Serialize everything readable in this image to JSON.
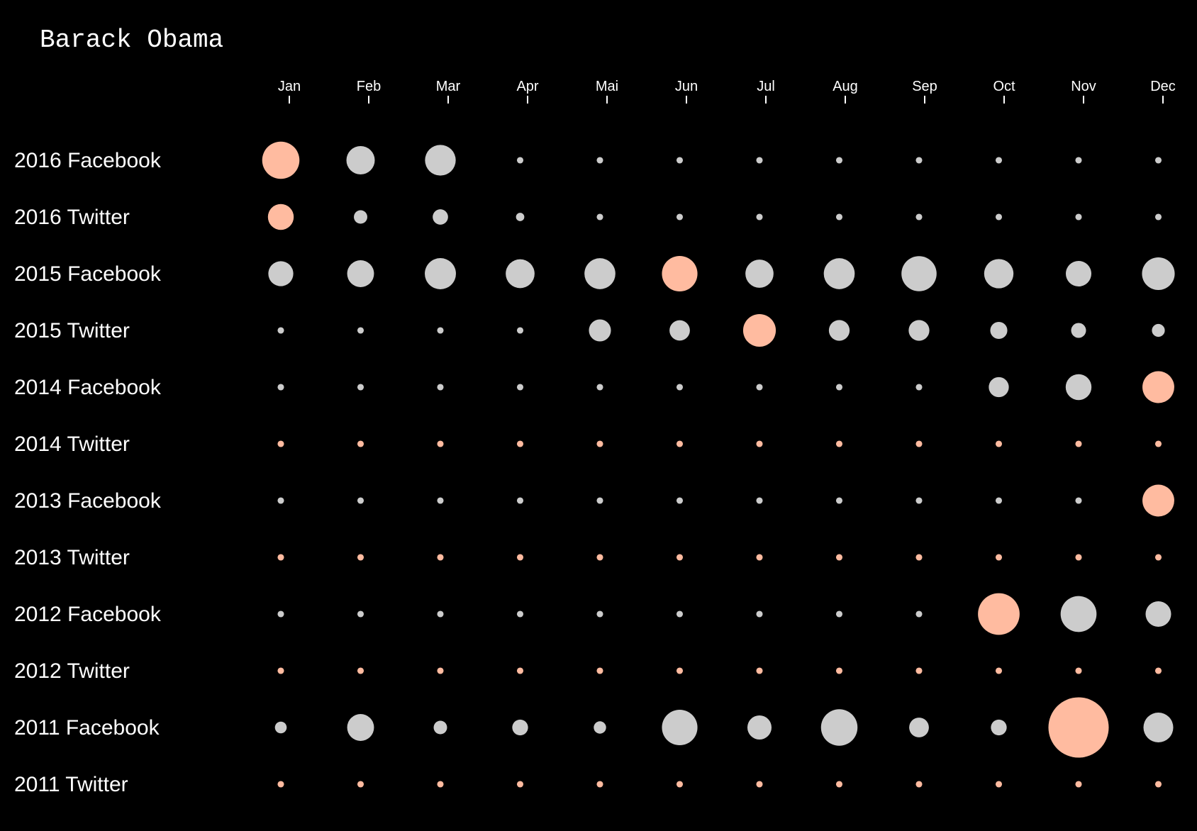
{
  "chart_data": {
    "type": "scatter",
    "title": "Barack Obama",
    "months": [
      "Jan",
      "Feb",
      "Mar",
      "Apr",
      "Mai",
      "Jun",
      "Jul",
      "Aug",
      "Sep",
      "Oct",
      "Nov",
      "Dec"
    ],
    "highlight_color": "#FFBBA0",
    "base_color": "#CCCCCC",
    "rows": [
      {
        "label": "2016 Facebook",
        "values": [
          100,
          58,
          68,
          3,
          3,
          3,
          3,
          3,
          3,
          3,
          3,
          3
        ],
        "highlight_index": 0
      },
      {
        "label": "2016 Twitter",
        "values": [
          48,
          13,
          17,
          5,
          3,
          3,
          3,
          3,
          3,
          3,
          3,
          3
        ],
        "highlight_index": 0
      },
      {
        "label": "2015 Facebook",
        "values": [
          45,
          52,
          70,
          60,
          69,
          91,
          57,
          69,
          89,
          62,
          47,
          77
        ],
        "highlight_index": 5
      },
      {
        "label": "2015 Twitter",
        "values": [
          3,
          3,
          3,
          3,
          35,
          30,
          77,
          31,
          31,
          21,
          16,
          12
        ],
        "highlight_index": 6
      },
      {
        "label": "2014 Facebook",
        "values": [
          3,
          3,
          3,
          3,
          3,
          3,
          3,
          3,
          3,
          29,
          48,
          73
        ],
        "highlight_index": 11
      },
      {
        "label": "2014 Twitter",
        "values": [
          3,
          3,
          3,
          3,
          3,
          3,
          3,
          3,
          3,
          3,
          3,
          3
        ],
        "highlight_index": -1
      },
      {
        "label": "2013 Facebook",
        "values": [
          3,
          3,
          3,
          3,
          3,
          3,
          3,
          3,
          3,
          3,
          3,
          73
        ],
        "highlight_index": 11
      },
      {
        "label": "2013 Twitter",
        "values": [
          3,
          3,
          3,
          3,
          3,
          3,
          3,
          3,
          3,
          3,
          3,
          3
        ],
        "highlight_index": -1
      },
      {
        "label": "2012 Facebook",
        "values": [
          3,
          3,
          3,
          3,
          3,
          3,
          3,
          3,
          3,
          125,
          93,
          47
        ],
        "highlight_index": 9
      },
      {
        "label": "2012 Twitter",
        "values": [
          3,
          3,
          3,
          3,
          3,
          3,
          3,
          3,
          3,
          3,
          3,
          3
        ],
        "highlight_index": -1
      },
      {
        "label": "2011 Facebook",
        "values": [
          10,
          52,
          13,
          18,
          11,
          91,
          42,
          96,
          28,
          18,
          262,
          64
        ],
        "highlight_index": 10
      },
      {
        "label": "2011 Twitter",
        "values": [
          3,
          3,
          3,
          3,
          3,
          3,
          3,
          3,
          3,
          3,
          3,
          3
        ],
        "highlight_index": -1
      }
    ]
  }
}
